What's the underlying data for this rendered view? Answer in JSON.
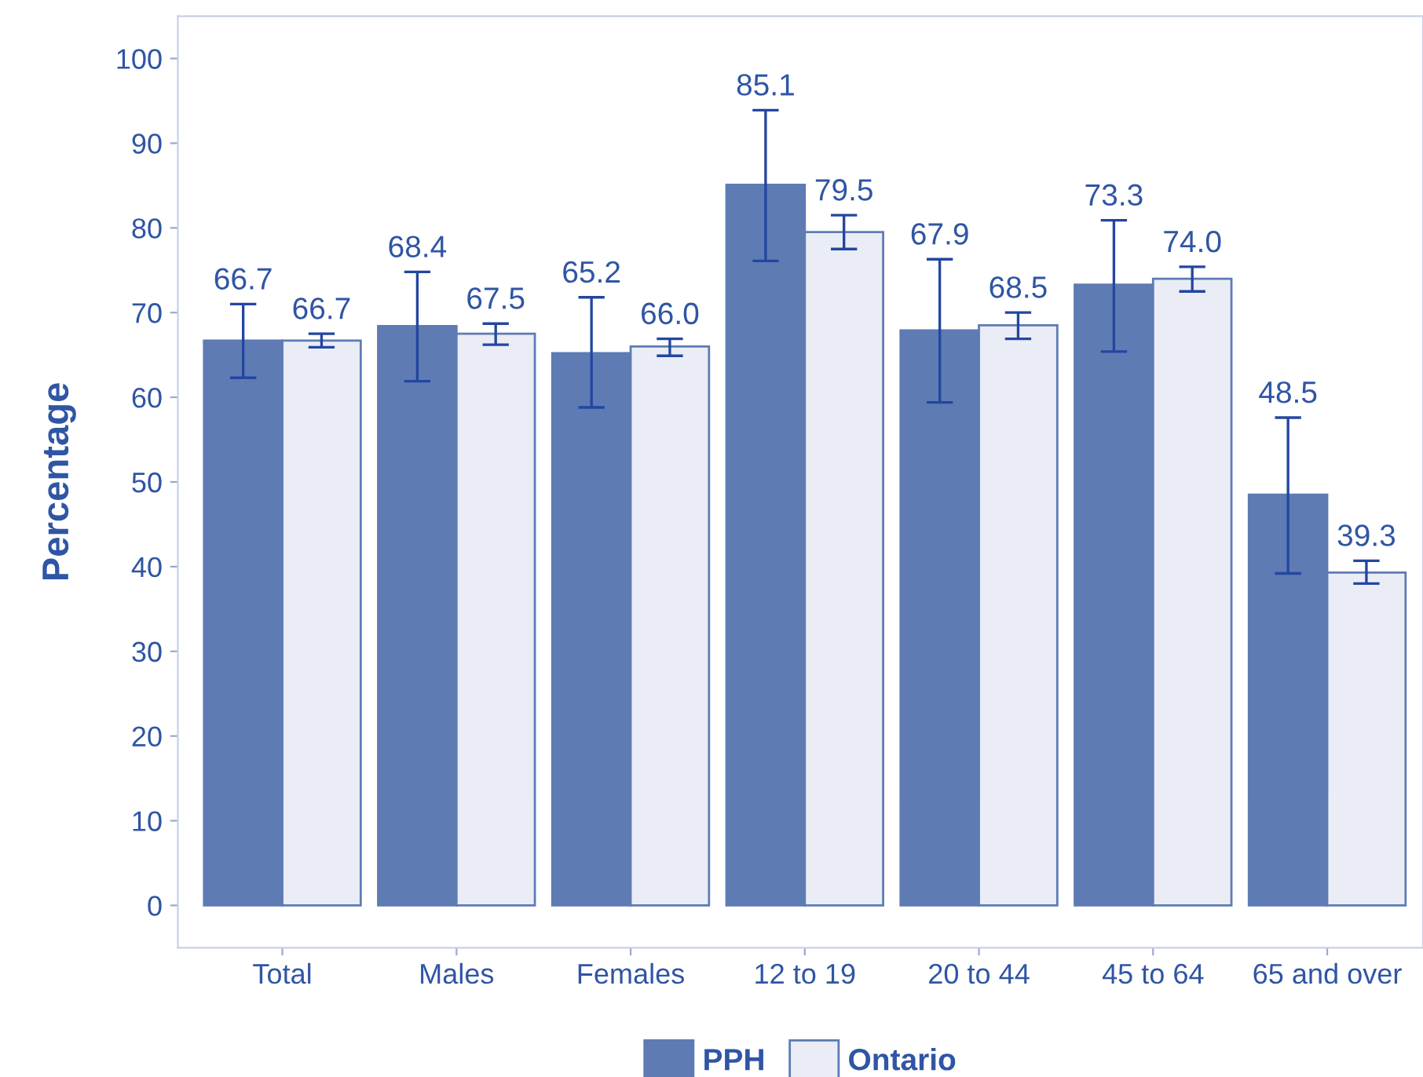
{
  "chart_data": {
    "type": "bar",
    "ylabel": "Percentage",
    "categories": [
      "Total",
      "Males",
      "Females",
      "12 to 19",
      "20 to 44",
      "45 to 64",
      "65 and over"
    ],
    "series": [
      {
        "name": "PPH",
        "color": "#5e7bb4",
        "values": [
          66.7,
          68.4,
          65.2,
          85.1,
          67.9,
          73.3,
          48.5
        ],
        "value_labels": [
          "66.7",
          "68.4",
          "65.2",
          "85.1",
          "67.9",
          "73.3",
          "48.5"
        ],
        "errors": [
          [
            62.3,
            71.0
          ],
          [
            61.9,
            74.8
          ],
          [
            58.8,
            71.8
          ],
          [
            76.1,
            93.9
          ],
          [
            59.4,
            76.3
          ],
          [
            65.4,
            80.9
          ],
          [
            39.2,
            57.6
          ]
        ]
      },
      {
        "name": "Ontario",
        "color": "#eaedf5",
        "values": [
          66.7,
          67.5,
          66.0,
          79.5,
          68.5,
          74.0,
          39.3
        ],
        "value_labels": [
          "66.7",
          "67.5",
          "66.0",
          "79.5",
          "68.5",
          "74.0",
          "39.3"
        ],
        "errors": [
          [
            65.9,
            67.5
          ],
          [
            66.2,
            68.7
          ],
          [
            64.9,
            66.9
          ],
          [
            77.5,
            81.5
          ],
          [
            66.9,
            70.0
          ],
          [
            72.5,
            75.4
          ],
          [
            38.0,
            40.7
          ]
        ]
      }
    ],
    "ylim": [
      -5,
      105
    ],
    "yticks": [
      0,
      10,
      20,
      30,
      40,
      50,
      60,
      70,
      80,
      90,
      100
    ],
    "grid": false,
    "legend": "bottom"
  }
}
